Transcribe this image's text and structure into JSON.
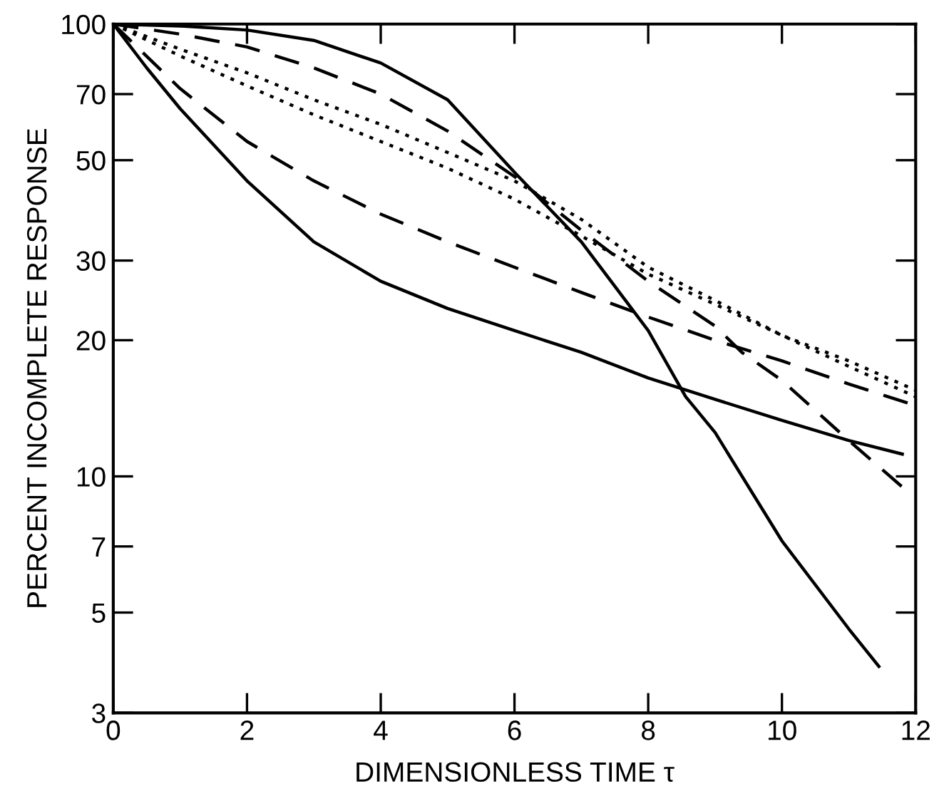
{
  "chart_data": {
    "type": "line",
    "xlabel": "DIMENSIONLESS TIME τ",
    "ylabel": "PERCENT INCOMPLETE RESPONSE",
    "xlim": [
      0,
      12
    ],
    "xticks": [
      0,
      2,
      4,
      6,
      8,
      10,
      12
    ],
    "ylim": [
      3,
      100
    ],
    "yticks": [
      3,
      5,
      7,
      10,
      20,
      30,
      50,
      70,
      100
    ],
    "log": "y",
    "grid": false,
    "marker": "none",
    "series": [
      {
        "color": "#000000",
        "line_style": "solid",
        "x": [
          0,
          0.5,
          1,
          2,
          3,
          4,
          5,
          6,
          7,
          8,
          9,
          10,
          11,
          11.8
        ],
        "values": [
          100,
          80,
          65,
          45,
          33,
          27,
          23.5,
          21,
          18.8,
          16.5,
          14.8,
          13.3,
          12,
          11.2
        ]
      },
      {
        "color": "#000000",
        "line_style": "dashed",
        "x": [
          0,
          1,
          2,
          3,
          4,
          5,
          6,
          7,
          8,
          9,
          10,
          11,
          11.9
        ],
        "values": [
          100,
          72,
          55,
          45,
          38,
          33,
          29,
          25.5,
          22.5,
          20,
          18,
          16,
          14.5
        ]
      },
      {
        "color": "#000000",
        "line_style": "dotted",
        "x": [
          0,
          1,
          2,
          3,
          4,
          5,
          6,
          7,
          8,
          9,
          10,
          11,
          12
        ],
        "values": [
          100,
          85,
          73,
          63,
          55,
          48,
          41,
          34,
          28,
          24,
          20.5,
          17.5,
          15
        ]
      },
      {
        "color": "#000000",
        "line_style": "dotted",
        "x": [
          0,
          1,
          2,
          3,
          4,
          5,
          6,
          7,
          8,
          9,
          10,
          11,
          12
        ],
        "values": [
          100,
          88,
          78,
          68,
          60,
          52,
          45,
          37,
          29,
          24.5,
          20.5,
          18,
          15.5
        ]
      },
      {
        "color": "#000000",
        "line_style": "dashed",
        "x": [
          0,
          1,
          2,
          3,
          4,
          5,
          6,
          7,
          8,
          9,
          9.4,
          10,
          11,
          11.9
        ],
        "values": [
          100,
          95,
          89,
          80,
          70,
          58,
          46,
          35,
          27,
          21.5,
          18.8,
          16.3,
          12,
          9.2
        ]
      },
      {
        "color": "#000000",
        "line_style": "solid",
        "x": [
          0,
          1,
          2,
          3,
          4,
          5,
          6,
          7,
          8,
          8.56,
          9,
          10,
          11,
          11.45
        ],
        "values": [
          100,
          99,
          97,
          92,
          82,
          68,
          47,
          33,
          21,
          15,
          12.5,
          7.2,
          4.6,
          3.8
        ]
      }
    ]
  }
}
